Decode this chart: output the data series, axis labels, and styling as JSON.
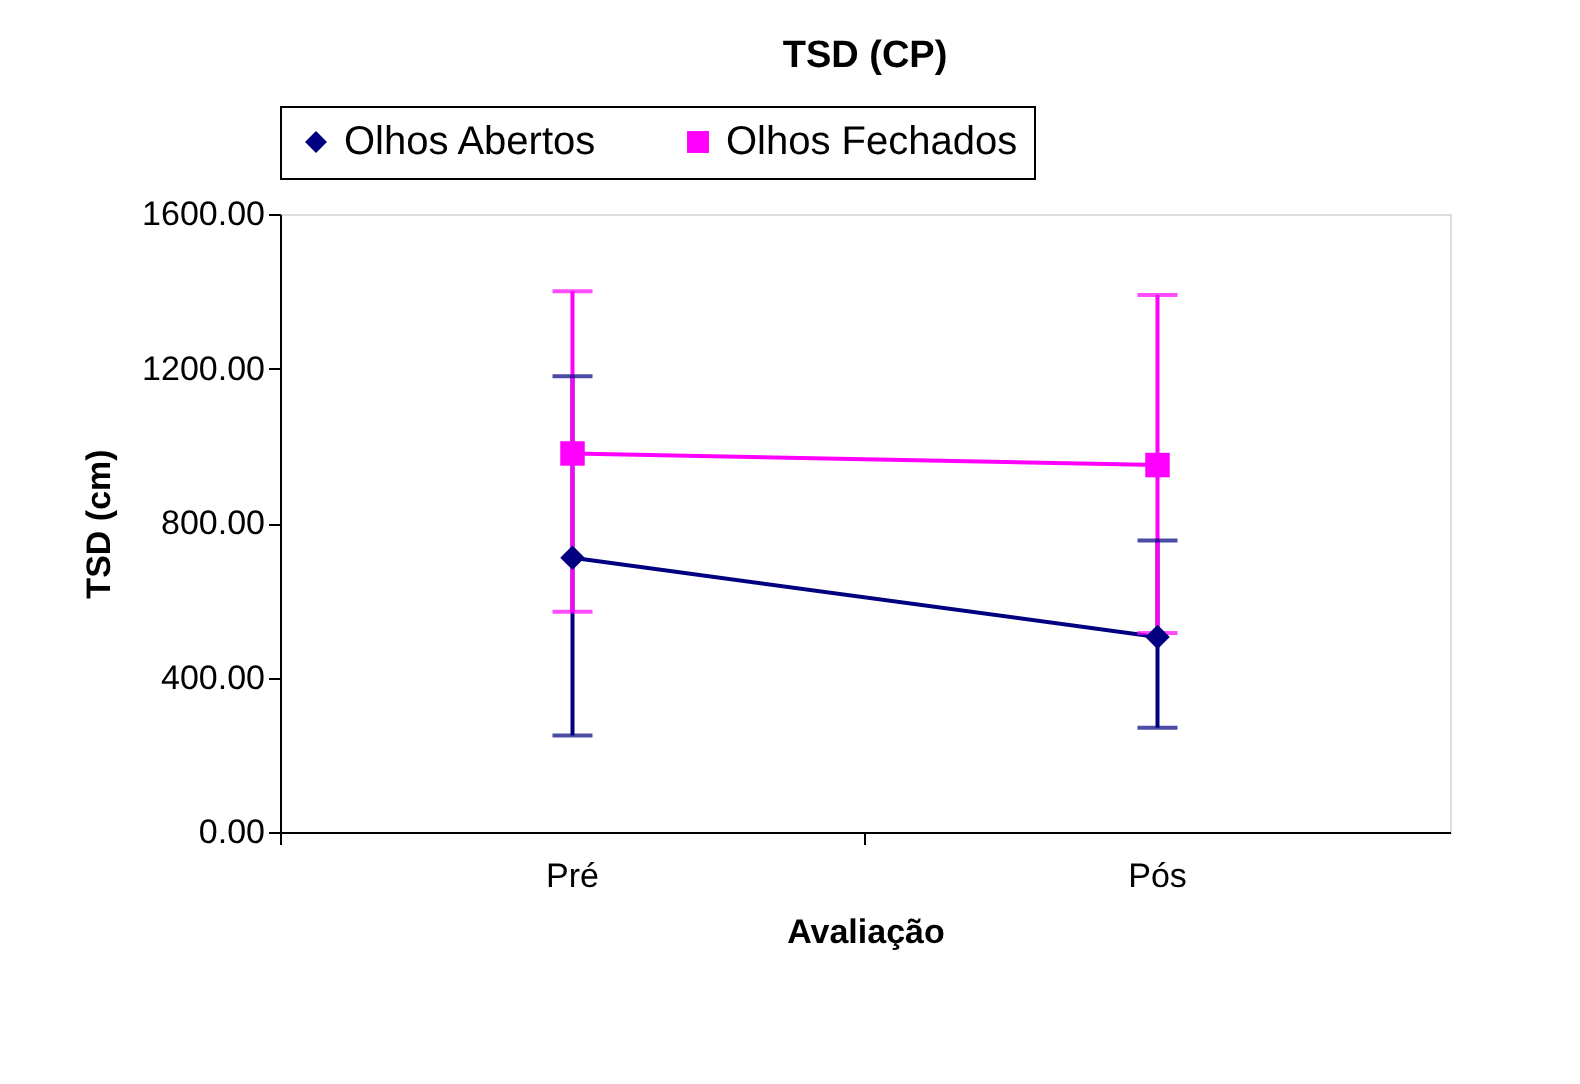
{
  "chart_data": {
    "type": "line",
    "title": "TSD (CP)",
    "xlabel": "Avaliação",
    "ylabel": "TSD (cm)",
    "categories": [
      "Pré",
      "Pós"
    ],
    "series": [
      {
        "name": "Olhos Abertos",
        "color": "#000080",
        "marker": "diamond",
        "values": [
          710,
          505
        ],
        "errors": [
          [
            250,
            1180
          ],
          [
            270,
            755
          ]
        ]
      },
      {
        "name": "Olhos Fechados",
        "color": "#ff00ff",
        "marker": "square",
        "values": [
          980,
          950
        ],
        "errors": [
          [
            570,
            1400
          ],
          [
            515,
            1390
          ]
        ]
      }
    ],
    "ylim": [
      0,
      1600
    ],
    "yticks": [
      {
        "value": 0,
        "label": "0.00"
      },
      {
        "value": 400,
        "label": "400.00"
      },
      {
        "value": 800,
        "label": "800.00"
      },
      {
        "value": 1200,
        "label": "1200.00"
      },
      {
        "value": 1600,
        "label": "1600.00"
      }
    ],
    "grid": false,
    "legend": "top"
  }
}
